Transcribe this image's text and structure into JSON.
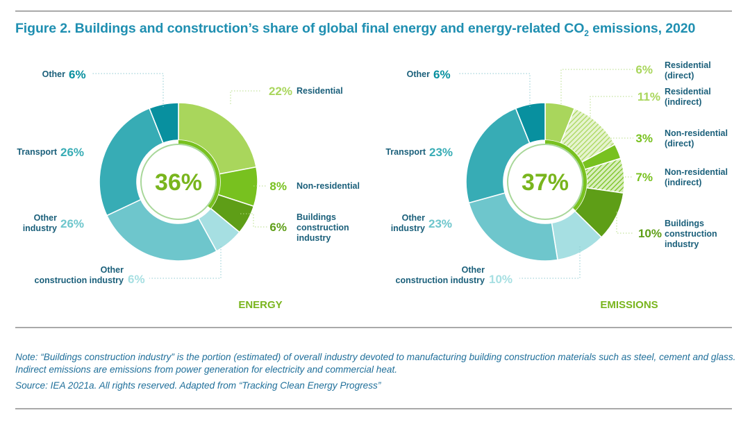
{
  "title": {
    "main": "Figure 2. Buildings and construction’s share of global final energy and energy-related CO",
    "sub": "2",
    "tail": " emissions, 2020"
  },
  "note": "Note: “Buildings construction industry” is the portion (estimated) of overall industry devoted to manufacturing building construction materials such as steel, cement and glass. Indirect emissions are emissions from power generation for electricity and commercial heat.",
  "source": "Source: IEA 2021a. All rights reserved. Adapted from “Tracking Clean Energy Progress”",
  "chart_data": [
    {
      "type": "pie",
      "variant": "donut",
      "title": "ENERGY",
      "center_label": "36%",
      "center_value": 36,
      "slices": [
        {
          "label": "Residential",
          "value": 22,
          "display": "22%",
          "color": "#a9d65c",
          "hatched": false
        },
        {
          "label": "Non-residential",
          "value": 8,
          "display": "8%",
          "color": "#78c11f",
          "hatched": false
        },
        {
          "label": "Buildings construction industry",
          "value": 6,
          "display": "6%",
          "color": "#5e9e17",
          "hatched": false
        },
        {
          "label": "Other construction industry",
          "value": 6,
          "display": "6%",
          "color": "#a6dfe2",
          "hatched": false
        },
        {
          "label": "Other industry",
          "value": 26,
          "display": "26%",
          "color": "#6ec6cc",
          "hatched": false
        },
        {
          "label": "Transport",
          "value": 26,
          "display": "26%",
          "color": "#37acb5",
          "hatched": false
        },
        {
          "label": "Other",
          "value": 6,
          "display": "6%",
          "color": "#08909f",
          "hatched": false
        }
      ]
    },
    {
      "type": "pie",
      "variant": "donut",
      "title": "EMISSIONS",
      "center_label": "37%",
      "center_value": 37,
      "slices": [
        {
          "label": "Residential (direct)",
          "value": 6,
          "display": "6%",
          "color": "#a9d65c",
          "hatched": false
        },
        {
          "label": "Residential (indirect)",
          "value": 11,
          "display": "11%",
          "color": "#a9d65c",
          "hatched": true
        },
        {
          "label": "Non-residential (direct)",
          "value": 3,
          "display": "3%",
          "color": "#78c11f",
          "hatched": false
        },
        {
          "label": "Non-residential (indirect)",
          "value": 7,
          "display": "7%",
          "color": "#78c11f",
          "hatched": true
        },
        {
          "label": "Buildings construction industry",
          "value": 10,
          "display": "10%",
          "color": "#5e9e17",
          "hatched": false
        },
        {
          "label": "Other construction industry",
          "value": 10,
          "display": "10%",
          "color": "#a6dfe2",
          "hatched": false
        },
        {
          "label": "Other industry",
          "value": 23,
          "display": "23%",
          "color": "#6ec6cc",
          "hatched": false
        },
        {
          "label": "Transport",
          "value": 23,
          "display": "23%",
          "color": "#37acb5",
          "hatched": false
        },
        {
          "label": "Other",
          "value": 6,
          "display": "6%",
          "color": "#08909f",
          "hatched": false
        }
      ]
    }
  ]
}
